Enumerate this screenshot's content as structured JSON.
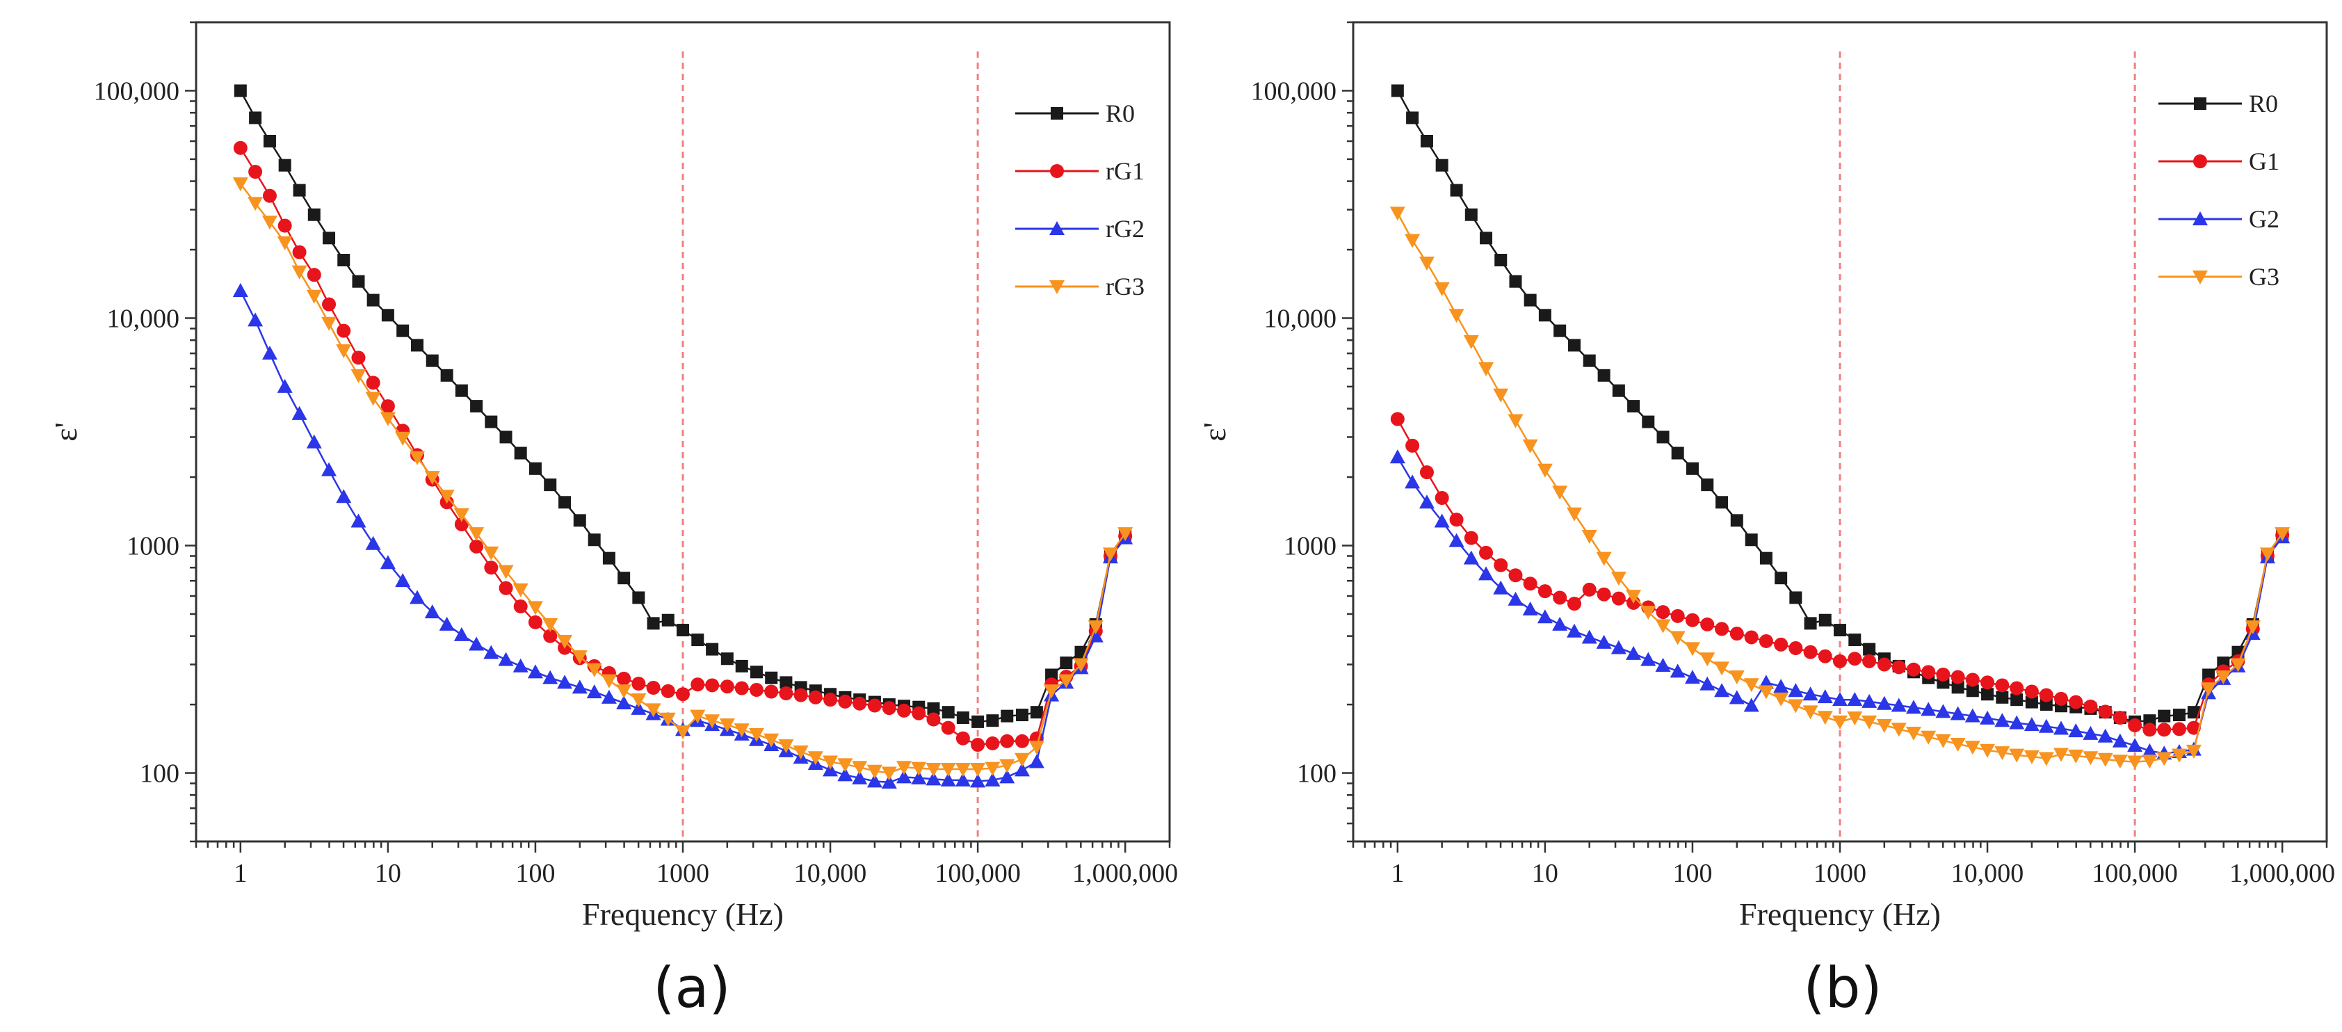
{
  "colors": {
    "R0": "#1a1a1a",
    "rG1": "#e8141c",
    "rG2": "#2a36e8",
    "rG3": "#f7931e",
    "G1": "#e8141c",
    "G2": "#2a36e8",
    "G3": "#f7931e",
    "refline": "#f08080"
  },
  "chart_data": [
    {
      "type": "line",
      "caption": "(a)",
      "xscale": "log",
      "yscale": "log",
      "xlim": [
        0.5,
        2000000
      ],
      "ylim": [
        50,
        200000
      ],
      "xlabel": "Frequency  (Hz)",
      "ylabel": "ε'",
      "xticks": [
        1,
        10,
        100,
        1000,
        10000,
        100000,
        1000000
      ],
      "xtick_labels": [
        "1",
        "10",
        "100",
        "1000",
        "10,000",
        "100,000",
        "1,000,000"
      ],
      "yticks": [
        100,
        1000,
        10000,
        100000
      ],
      "ytick_labels": [
        "100",
        "1000",
        "10,000",
        "100,000"
      ],
      "reference_lines_x": [
        1000,
        100000
      ],
      "legend_position": "top-right",
      "x": [
        1,
        1.26,
        1.58,
        2,
        2.51,
        3.16,
        3.98,
        5.01,
        6.31,
        7.94,
        10,
        12.6,
        15.8,
        20,
        25.1,
        31.6,
        39.8,
        50.1,
        63.1,
        79.4,
        100,
        126,
        158,
        200,
        251,
        316,
        398,
        501,
        631,
        794,
        1000,
        1260,
        1580,
        2000,
        2510,
        3160,
        3980,
        5010,
        6310,
        7940,
        10000,
        12600,
        15800,
        20000,
        25100,
        31600,
        39800,
        50100,
        63100,
        79400,
        100000,
        126000,
        158000,
        200000,
        251000,
        316000,
        398000,
        501000,
        631000,
        794000,
        1000000
      ],
      "series": [
        {
          "name": "R0",
          "marker": "square",
          "values": [
            100000,
            76000,
            60000,
            47000,
            36500,
            28500,
            22500,
            18000,
            14500,
            12000,
            10300,
            8800,
            7600,
            6500,
            5600,
            4800,
            4100,
            3500,
            3000,
            2550,
            2180,
            1850,
            1550,
            1290,
            1060,
            880,
            720,
            590,
            455,
            470,
            425,
            385,
            350,
            318,
            295,
            278,
            262,
            250,
            238,
            230,
            222,
            215,
            210,
            205,
            200,
            197,
            195,
            192,
            185,
            175,
            168,
            170,
            178,
            180,
            185,
            270,
            305,
            340,
            450,
            910,
            1120
          ]
        },
        {
          "name": "rG1",
          "marker": "circle",
          "values": [
            56000,
            44000,
            34500,
            25500,
            19500,
            15500,
            11500,
            8800,
            6700,
            5200,
            4100,
            3200,
            2500,
            1950,
            1550,
            1240,
            990,
            800,
            650,
            540,
            460,
            400,
            355,
            320,
            295,
            275,
            260,
            247,
            237,
            229,
            222,
            245,
            243,
            240,
            236,
            232,
            228,
            224,
            220,
            215,
            210,
            206,
            202,
            198,
            193,
            188,
            183,
            172,
            158,
            142,
            133,
            135,
            138,
            138,
            142,
            245,
            265,
            295,
            420,
            900,
            1100
          ]
        },
        {
          "name": "rG2",
          "marker": "triangle-up",
          "values": [
            13200,
            9800,
            7000,
            5000,
            3800,
            2850,
            2150,
            1640,
            1280,
            1020,
            840,
            700,
            590,
            510,
            450,
            405,
            368,
            338,
            315,
            295,
            278,
            262,
            250,
            238,
            227,
            215,
            203,
            192,
            182,
            172,
            155,
            170,
            163,
            155,
            148,
            140,
            133,
            125,
            117,
            110,
            103,
            98,
            95,
            92,
            91,
            96,
            95,
            94,
            93,
            93,
            92,
            93,
            96,
            103,
            112,
            220,
            250,
            290,
            400,
            890,
            1080
          ]
        },
        {
          "name": "rG3",
          "marker": "triangle-down",
          "values": [
            39000,
            32000,
            26500,
            21500,
            16000,
            12500,
            9500,
            7200,
            5600,
            4450,
            3620,
            2970,
            2440,
            2000,
            1650,
            1370,
            1130,
            930,
            770,
            640,
            535,
            450,
            380,
            325,
            285,
            255,
            230,
            210,
            190,
            173,
            152,
            178,
            170,
            163,
            155,
            148,
            140,
            132,
            124,
            117,
            112,
            109,
            106,
            102,
            100,
            106,
            105,
            104,
            104,
            104,
            104,
            105,
            108,
            115,
            130,
            230,
            255,
            300,
            440,
            920,
            1130
          ]
        }
      ]
    },
    {
      "type": "line",
      "caption": "(b)",
      "xscale": "log",
      "yscale": "log",
      "xlim": [
        0.5,
        2000000
      ],
      "ylim": [
        50,
        200000
      ],
      "xlabel": "Frequency  (Hz)",
      "ylabel": "ε'",
      "xticks": [
        1,
        10,
        100,
        1000,
        10000,
        100000,
        1000000
      ],
      "xtick_labels": [
        "1",
        "10",
        "100",
        "1000",
        "10,000",
        "100,000",
        "1,000,000"
      ],
      "yticks": [
        100,
        1000,
        10000,
        100000
      ],
      "ytick_labels": [
        "100",
        "1000",
        "10,000",
        "100,000"
      ],
      "reference_lines_x": [
        1000,
        100000
      ],
      "legend_position": "top-right",
      "x": [
        1,
        1.26,
        1.58,
        2,
        2.51,
        3.16,
        3.98,
        5.01,
        6.31,
        7.94,
        10,
        12.6,
        15.8,
        20,
        25.1,
        31.6,
        39.8,
        50.1,
        63.1,
        79.4,
        100,
        126,
        158,
        200,
        251,
        316,
        398,
        501,
        631,
        794,
        1000,
        1260,
        1580,
        2000,
        2510,
        3160,
        3980,
        5010,
        6310,
        7940,
        10000,
        12600,
        15800,
        20000,
        25100,
        31600,
        39800,
        50100,
        63100,
        79400,
        100000,
        126000,
        158000,
        200000,
        251000,
        316000,
        398000,
        501000,
        631000,
        794000,
        1000000
      ],
      "series": [
        {
          "name": "R0",
          "marker": "square",
          "values": [
            100000,
            76000,
            60000,
            47000,
            36500,
            28500,
            22500,
            18000,
            14500,
            12000,
            10300,
            8800,
            7600,
            6500,
            5600,
            4800,
            4100,
            3500,
            3000,
            2550,
            2180,
            1850,
            1550,
            1290,
            1060,
            880,
            720,
            590,
            455,
            470,
            425,
            385,
            350,
            318,
            295,
            278,
            262,
            250,
            238,
            230,
            222,
            215,
            210,
            205,
            200,
            197,
            195,
            192,
            185,
            175,
            168,
            170,
            178,
            180,
            185,
            270,
            305,
            340,
            450,
            910,
            1120
          ]
        },
        {
          "name": "G1",
          "marker": "circle",
          "values": [
            3600,
            2750,
            2100,
            1620,
            1300,
            1080,
            930,
            820,
            740,
            680,
            630,
            590,
            555,
            640,
            610,
            585,
            560,
            535,
            510,
            490,
            470,
            450,
            430,
            410,
            395,
            380,
            367,
            354,
            340,
            326,
            310,
            318,
            310,
            300,
            292,
            285,
            278,
            271,
            264,
            257,
            250,
            243,
            236,
            228,
            220,
            212,
            205,
            196,
            186,
            175,
            162,
            155,
            155,
            156,
            158,
            245,
            280,
            310,
            430,
            900,
            1110
          ]
        },
        {
          "name": "G2",
          "marker": "triangle-up",
          "values": [
            2450,
            1900,
            1550,
            1280,
            1050,
            880,
            750,
            650,
            580,
            525,
            485,
            450,
            420,
            395,
            375,
            355,
            335,
            315,
            297,
            280,
            263,
            246,
            230,
            214,
            198,
            250,
            240,
            230,
            222,
            216,
            210,
            210,
            206,
            202,
            198,
            194,
            190,
            186,
            182,
            178,
            174,
            170,
            166,
            163,
            160,
            157,
            153,
            149,
            145,
            138,
            132,
            125,
            122,
            124,
            127,
            225,
            260,
            295,
            410,
            890,
            1090
          ]
        },
        {
          "name": "G3",
          "marker": "triangle-down",
          "values": [
            29000,
            22000,
            17500,
            13500,
            10300,
            7900,
            6000,
            4600,
            3550,
            2750,
            2150,
            1720,
            1380,
            1100,
            880,
            720,
            600,
            510,
            445,
            395,
            353,
            318,
            290,
            265,
            245,
            228,
            212,
            198,
            186,
            176,
            168,
            175,
            168,
            162,
            156,
            150,
            144,
            139,
            134,
            130,
            126,
            123,
            120,
            118,
            116,
            121,
            119,
            117,
            115,
            113,
            112,
            113,
            116,
            120,
            125,
            235,
            265,
            300,
            440,
            920,
            1130
          ]
        }
      ]
    }
  ]
}
